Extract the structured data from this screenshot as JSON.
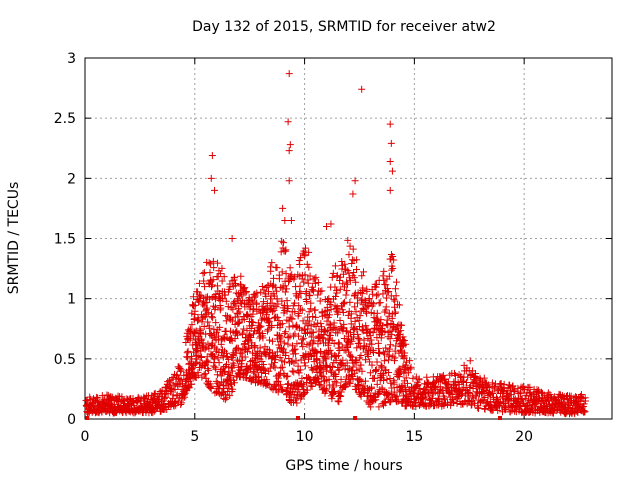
{
  "chart_data": {
    "type": "scatter",
    "title": "Day 132 of 2015, SRMTID for receiver atw2",
    "xlabel": "GPS time / hours",
    "ylabel": "SRMTID / TECUs",
    "xlim": [
      0,
      24
    ],
    "ylim": [
      0,
      3
    ],
    "xticks": [
      0,
      5,
      10,
      15,
      20
    ],
    "yticks": [
      0,
      0.5,
      1,
      1.5,
      2,
      2.5,
      3
    ],
    "ytick_labels": [
      "0",
      "0.5",
      "1",
      "1.5",
      "2",
      "2.5",
      "3"
    ],
    "grid": true,
    "marker": "+",
    "color": "#e00000",
    "envelope": {
      "x": [
        0.0,
        1.0,
        2.0,
        3.0,
        3.6,
        4.0,
        4.4,
        5.0,
        5.5,
        6.0,
        6.5,
        7.0,
        7.5,
        8.0,
        8.5,
        9.0,
        9.5,
        10.0,
        10.5,
        11.0,
        11.5,
        12.0,
        12.5,
        13.0,
        13.5,
        14.0,
        14.5,
        15.0,
        16.0,
        17.0,
        17.5,
        18.0,
        19.0,
        20.0,
        21.0,
        22.0,
        22.8
      ],
      "low": [
        0.05,
        0.05,
        0.05,
        0.05,
        0.07,
        0.1,
        0.12,
        0.35,
        0.3,
        0.2,
        0.15,
        0.35,
        0.3,
        0.3,
        0.25,
        0.2,
        0.1,
        0.2,
        0.3,
        0.2,
        0.12,
        0.3,
        0.2,
        0.1,
        0.1,
        0.15,
        0.1,
        0.1,
        0.1,
        0.12,
        0.12,
        0.08,
        0.06,
        0.05,
        0.05,
        0.04,
        0.05
      ],
      "high": [
        0.18,
        0.2,
        0.18,
        0.2,
        0.25,
        0.4,
        0.5,
        1.1,
        1.3,
        1.4,
        1.1,
        1.25,
        1.0,
        1.1,
        1.3,
        1.5,
        1.2,
        1.5,
        1.2,
        1.0,
        1.35,
        1.5,
        1.3,
        1.1,
        1.2,
        1.4,
        0.7,
        0.35,
        0.35,
        0.4,
        0.5,
        0.35,
        0.3,
        0.28,
        0.22,
        0.2,
        0.22
      ]
    },
    "highlights": [
      {
        "x": 5.8,
        "y": 2.19
      },
      {
        "x": 5.75,
        "y": 2.0
      },
      {
        "x": 5.9,
        "y": 1.9
      },
      {
        "x": 9.3,
        "y": 2.87
      },
      {
        "x": 9.25,
        "y": 2.47
      },
      {
        "x": 9.35,
        "y": 2.28
      },
      {
        "x": 9.3,
        "y": 2.23
      },
      {
        "x": 9.3,
        "y": 1.98
      },
      {
        "x": 9.0,
        "y": 1.75
      },
      {
        "x": 9.1,
        "y": 1.65
      },
      {
        "x": 9.4,
        "y": 1.65
      },
      {
        "x": 12.3,
        "y": 1.98
      },
      {
        "x": 12.2,
        "y": 1.87
      },
      {
        "x": 12.6,
        "y": 2.74
      },
      {
        "x": 13.9,
        "y": 2.45
      },
      {
        "x": 13.95,
        "y": 2.29
      },
      {
        "x": 13.9,
        "y": 2.14
      },
      {
        "x": 14.0,
        "y": 2.06
      },
      {
        "x": 13.9,
        "y": 1.9
      },
      {
        "x": 11.0,
        "y": 1.6
      },
      {
        "x": 11.2,
        "y": 1.62
      },
      {
        "x": 6.7,
        "y": 1.5
      }
    ],
    "axis_markers": [
      {
        "x": 0.1,
        "y": 0
      },
      {
        "x": 9.7,
        "y": 0
      },
      {
        "x": 12.3,
        "y": 0
      },
      {
        "x": 18.9,
        "y": 0
      }
    ]
  }
}
